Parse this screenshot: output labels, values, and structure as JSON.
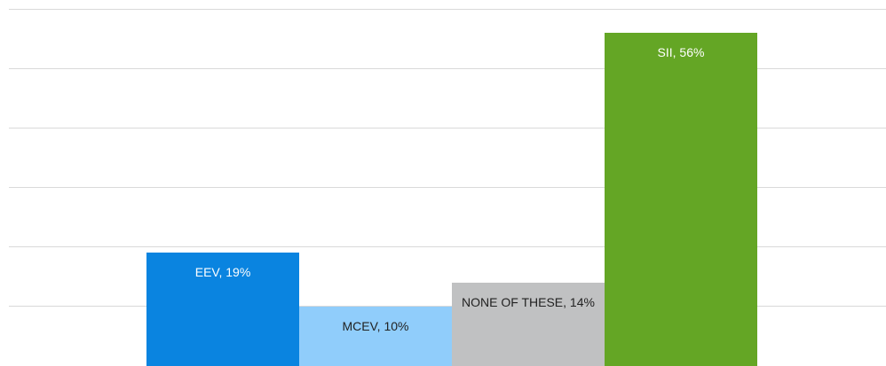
{
  "chart_data": {
    "type": "bar",
    "values": [
      19,
      10,
      14,
      56
    ],
    "value_labels": [
      "EEV, 19%",
      "MCEV, 10%",
      "NONE OF THESE, 14%",
      "SII, 56%"
    ],
    "colors": [
      "#0a84e0",
      "#90cdfb",
      "#c0c1c2",
      "#64a625"
    ],
    "ylim": [
      0,
      60
    ],
    "yticks": [
      0,
      10,
      20,
      30,
      40,
      50,
      60
    ],
    "grid": true
  }
}
